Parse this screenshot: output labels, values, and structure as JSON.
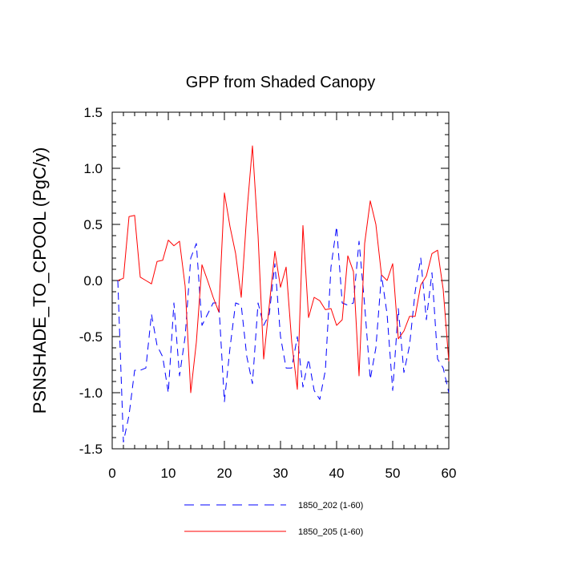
{
  "chart_data": {
    "type": "line",
    "title": "GPP from Shaded Canopy",
    "xlabel": "",
    "ylabel": "PSNSHADE_TO_CPOOL  (PgC/y)",
    "xlim": [
      0,
      60
    ],
    "ylim": [
      -1.5,
      1.5
    ],
    "x_ticks": [
      0,
      10,
      20,
      30,
      40,
      50,
      60
    ],
    "x_tick_labels": [
      "0",
      "10",
      "20",
      "30",
      "40",
      "50",
      "60"
    ],
    "y_ticks": [
      -1.5,
      -1.0,
      -0.5,
      0.0,
      0.5,
      1.0,
      1.5
    ],
    "y_tick_labels": [
      "-1.5",
      "-1.0",
      "-0.5",
      "0.0",
      "0.5",
      "1.0",
      "1.5"
    ],
    "x": [
      1,
      2,
      3,
      4,
      5,
      6,
      7,
      8,
      9,
      10,
      11,
      12,
      13,
      14,
      15,
      16,
      17,
      18,
      19,
      20,
      21,
      22,
      23,
      24,
      25,
      26,
      27,
      28,
      29,
      30,
      31,
      32,
      33,
      34,
      35,
      36,
      37,
      38,
      39,
      40,
      41,
      42,
      43,
      44,
      45,
      46,
      47,
      48,
      49,
      50,
      51,
      52,
      53,
      54,
      55,
      56,
      57,
      58,
      59,
      60
    ],
    "series": [
      {
        "name": "1850_202 (1-60)",
        "color": "#0000ff",
        "style": "dashed",
        "values": [
          0.0,
          -1.44,
          -1.2,
          -0.8,
          -0.8,
          -0.78,
          -0.3,
          -0.58,
          -0.68,
          -1.0,
          -0.2,
          -0.85,
          -0.5,
          0.2,
          0.33,
          -0.4,
          -0.3,
          -0.2,
          -0.2,
          -1.08,
          -0.6,
          -0.2,
          -0.22,
          -0.68,
          -0.92,
          -0.2,
          -0.4,
          -0.3,
          0.15,
          -0.5,
          -0.78,
          -0.78,
          -0.5,
          -0.95,
          -0.7,
          -0.98,
          -1.06,
          -0.8,
          0.12,
          0.48,
          -0.2,
          -0.22,
          -0.2,
          0.35,
          -0.22,
          -0.88,
          -0.6,
          0.05,
          -0.3,
          -0.98,
          -0.25,
          -0.82,
          -0.58,
          -0.1,
          0.2,
          -0.35,
          0.07,
          -0.7,
          -0.78,
          -1.0
        ]
      },
      {
        "name": "1850_205 (1-60)",
        "color": "#ff0000",
        "style": "solid",
        "values": [
          0.0,
          0.02,
          0.57,
          0.58,
          0.03,
          0.0,
          -0.03,
          0.17,
          0.18,
          0.36,
          0.31,
          0.35,
          -0.05,
          -1.0,
          -0.55,
          0.14,
          0.0,
          -0.15,
          -0.28,
          0.78,
          0.48,
          0.24,
          -0.15,
          0.6,
          1.2,
          0.4,
          -0.7,
          -0.22,
          0.26,
          -0.06,
          0.12,
          -0.55,
          -0.97,
          0.49,
          -0.33,
          -0.15,
          -0.18,
          -0.26,
          -0.25,
          -0.4,
          -0.35,
          0.22,
          0.08,
          -0.85,
          0.33,
          0.71,
          0.5,
          0.05,
          0.0,
          0.15,
          -0.52,
          -0.45,
          -0.32,
          -0.32,
          -0.04,
          0.04,
          0.24,
          0.27,
          -0.08,
          -0.72
        ]
      }
    ],
    "legend_position": "bottom"
  }
}
